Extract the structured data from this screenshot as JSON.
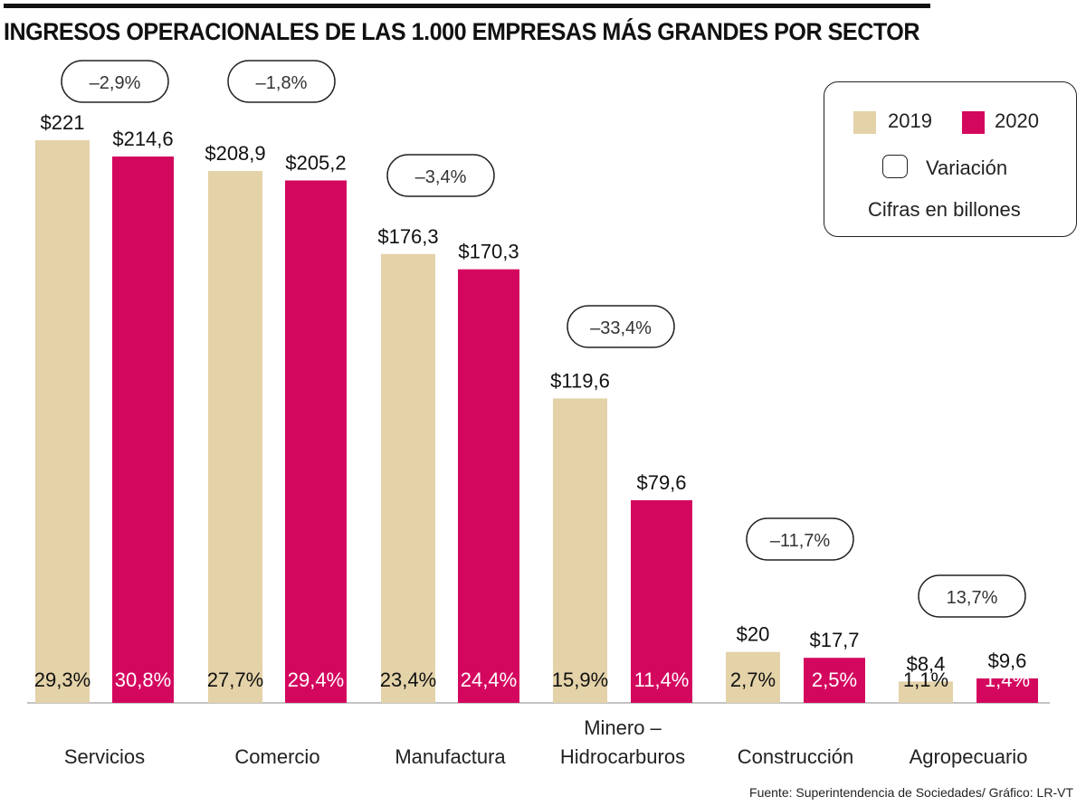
{
  "chart_data": {
    "type": "bar",
    "title": "INGRESOS OPERACIONALES DE LAS 1.000 EMPRESAS MÁS GRANDES POR SECTOR",
    "categories": [
      "Servicios",
      "Comercio",
      "Manufactura",
      "Minero –\nHidrocarburos",
      "Construcción",
      "Agropecuario"
    ],
    "series": [
      {
        "name": "2019",
        "color": "#e4d2a9",
        "values": [
          221,
          208.9,
          176.3,
          119.6,
          20,
          8.4
        ],
        "labels": [
          "$221",
          "$208,9",
          "$176,3",
          "$119,6",
          "$20",
          "$8,4"
        ],
        "shares": [
          "29,3%",
          "27,7%",
          "23,4%",
          "15,9%",
          "2,7%",
          "1,1%"
        ]
      },
      {
        "name": "2020",
        "color": "#d4075f",
        "values": [
          214.6,
          205.2,
          170.3,
          79.6,
          17.7,
          9.6
        ],
        "labels": [
          "$214,6",
          "$205,2",
          "$170,3",
          "$79,6",
          "$17,7",
          "$9,6"
        ],
        "shares": [
          "30,8%",
          "29,4%",
          "24,4%",
          "11,4%",
          "2,5%",
          "1,4%"
        ]
      }
    ],
    "variation": [
      "–2,9%",
      "–1,8%",
      "–3,4%",
      "–33,4%",
      "–11,7%",
      "13,7%"
    ],
    "ylim": [
      0,
      221
    ]
  },
  "legend": {
    "y2019": "2019",
    "y2020": "2020",
    "variation": "Variación",
    "units": "Cifras en billones"
  },
  "source": "Fuente: Superintendencia de Sociedades/ Gráfico: LR-VT"
}
